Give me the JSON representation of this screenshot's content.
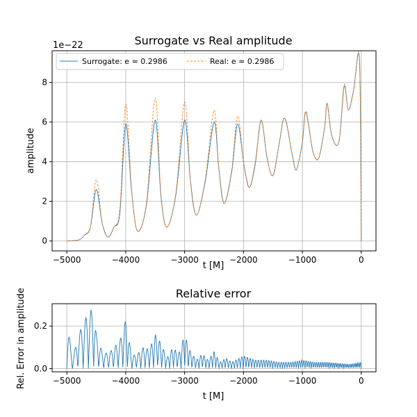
{
  "chart_data": [
    {
      "type": "line",
      "title": "Surrogate vs Real amplitude",
      "xlabel": "t [M]",
      "ylabel": "amplitude",
      "offset_label": "1e−22",
      "xlim": [
        -5250,
        250
      ],
      "ylim": [
        -0.5,
        9.6
      ],
      "xticks": [
        -5000,
        -4000,
        -3000,
        -2000,
        -1000,
        0
      ],
      "xtick_labels": [
        "−5000",
        "−4000",
        "−3000",
        "−2000",
        "−1000",
        "0"
      ],
      "yticks": [
        0,
        2,
        4,
        6,
        8
      ],
      "ytick_labels": [
        "0",
        "2",
        "4",
        "6",
        "8"
      ],
      "grid": true,
      "legend": "top-left",
      "series": [
        {
          "name": "Surrogate: e = 0.2986",
          "color": "#1f77b4",
          "style": "solid",
          "x": [
            -5000,
            -4800,
            -4700,
            -4600,
            -4500,
            -4400,
            -4300,
            -4200,
            -4100,
            -4000,
            -3900,
            -3800,
            -3650,
            -3500,
            -3400,
            -3300,
            -3150,
            -3000,
            -2900,
            -2800,
            -2650,
            -2500,
            -2420,
            -2330,
            -2200,
            -2100,
            -1990,
            -1900,
            -1800,
            -1700,
            -1600,
            -1500,
            -1400,
            -1300,
            -1170,
            -1100,
            -1000,
            -940,
            -820,
            -720,
            -620,
            -580,
            -500,
            -380,
            -290,
            -220,
            -130,
            -30,
            0
          ],
          "y": [
            0.0,
            0.05,
            0.3,
            0.7,
            2.6,
            0.9,
            0.2,
            0.7,
            1.4,
            5.9,
            2.5,
            0.5,
            1.8,
            6.1,
            2.2,
            0.7,
            2.3,
            6.1,
            3.0,
            1.3,
            3.0,
            6.0,
            3.7,
            1.9,
            3.5,
            5.9,
            3.8,
            2.7,
            3.9,
            6.1,
            4.2,
            3.3,
            4.8,
            6.2,
            4.3,
            3.6,
            5.0,
            6.5,
            4.5,
            4.2,
            5.8,
            6.95,
            5.3,
            5.0,
            7.8,
            6.6,
            7.6,
            9.1,
            0.0
          ]
        },
        {
          "name": "Real: e = 0.2986",
          "color": "#ff7f0e",
          "style": "dashed",
          "x": [
            -5000,
            -4800,
            -4700,
            -4600,
            -4500,
            -4400,
            -4300,
            -4200,
            -4100,
            -4000,
            -3900,
            -3800,
            -3650,
            -3500,
            -3400,
            -3300,
            -3150,
            -3000,
            -2900,
            -2800,
            -2650,
            -2500,
            -2420,
            -2330,
            -2200,
            -2100,
            -1990,
            -1900,
            -1800,
            -1700,
            -1600,
            -1500,
            -1400,
            -1300,
            -1170,
            -1100,
            -1000,
            -940,
            -820,
            -720,
            -620,
            -580,
            -500,
            -380,
            -290,
            -220,
            -130,
            -30,
            0
          ],
          "y": [
            0.0,
            0.05,
            0.3,
            0.7,
            3.1,
            0.9,
            0.2,
            0.7,
            1.6,
            6.9,
            2.6,
            0.5,
            1.9,
            7.2,
            2.3,
            0.7,
            2.4,
            7.0,
            3.0,
            1.3,
            3.1,
            6.6,
            3.7,
            1.9,
            3.6,
            6.3,
            3.8,
            2.7,
            4.0,
            6.1,
            4.2,
            3.3,
            4.8,
            6.2,
            4.3,
            3.6,
            5.0,
            6.55,
            4.5,
            4.2,
            5.8,
            6.95,
            5.3,
            5.0,
            7.9,
            6.6,
            7.6,
            9.2,
            0.0
          ]
        }
      ]
    },
    {
      "type": "line",
      "title": "Relative error",
      "xlabel": "t [M]",
      "ylabel": "Rel. Error in amplitude",
      "xlim": [
        -5250,
        250
      ],
      "ylim": [
        -0.015,
        0.305
      ],
      "xticks": [
        -5000,
        -4000,
        -3000,
        -2000,
        -1000,
        0
      ],
      "xtick_labels": [
        "−5000",
        "−4000",
        "−3000",
        "−2000",
        "−1000",
        "0"
      ],
      "yticks": [
        0.0,
        0.2
      ],
      "ytick_labels": [
        "0.0",
        "0.2"
      ],
      "grid": true,
      "series": [
        {
          "color": "#1f77b4",
          "style": "solid",
          "x": [
            -5000,
            -4900,
            -4800,
            -4700,
            -4600,
            -4550,
            -4500,
            -4400,
            -4300,
            -4200,
            -4100,
            -4000,
            -3900,
            -3800,
            -3700,
            -3600,
            -3500,
            -3400,
            -3300,
            -3200,
            -3100,
            -3000,
            -2900,
            -2800,
            -2700,
            -2600,
            -2500,
            -2400,
            -2300,
            -2200,
            -2000,
            -1800,
            -1600,
            -1400,
            -1200,
            -1000,
            -800,
            -600,
            -400,
            -200,
            0
          ],
          "envelope": [
            0.22,
            0.05,
            0.16,
            0.23,
            0.27,
            0.29,
            0.16,
            0.08,
            0.07,
            0.1,
            0.13,
            0.23,
            0.06,
            0.07,
            0.1,
            0.09,
            0.16,
            0.12,
            0.05,
            0.1,
            0.07,
            0.16,
            0.08,
            0.04,
            0.07,
            0.04,
            0.08,
            0.03,
            0.05,
            0.03,
            0.06,
            0.04,
            0.04,
            0.03,
            0.03,
            0.04,
            0.03,
            0.03,
            0.025,
            0.02,
            0.03
          ]
        }
      ]
    }
  ]
}
